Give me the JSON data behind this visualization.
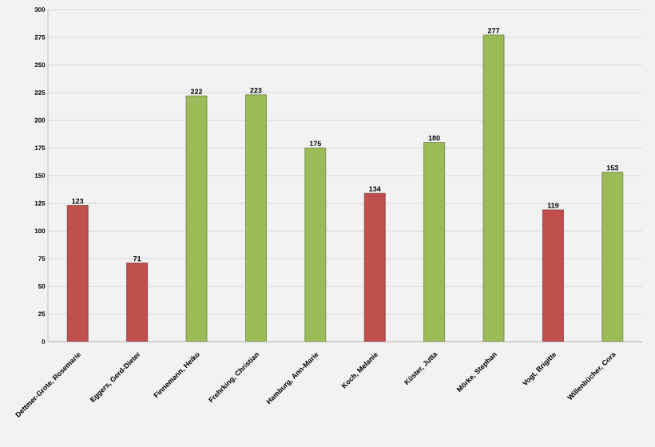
{
  "chart_data": {
    "type": "bar",
    "categories": [
      "Dettmer-Grote, Rosemarie",
      "Eggers, Gerd-Dieter",
      "Finnemann, Heiko",
      "Frehrking, Christian",
      "Hamburg, Ann-Marie",
      "Koch, Melanie",
      "Küster, Jutta",
      "Mörke, Stephan",
      "Vogt, Brigitte",
      "Willenbücher, Cora"
    ],
    "values": [
      123,
      71,
      222,
      223,
      175,
      134,
      180,
      277,
      119,
      153
    ],
    "colors": [
      "#c0504d",
      "#c0504d",
      "#9bbb59",
      "#9bbb59",
      "#9bbb59",
      "#c0504d",
      "#9bbb59",
      "#9bbb59",
      "#c0504d",
      "#9bbb59"
    ],
    "ylim": [
      0,
      300
    ],
    "yticks": [
      0,
      25,
      50,
      75,
      100,
      125,
      150,
      175,
      200,
      225,
      250,
      275,
      300
    ],
    "grid": "y",
    "data_labels": true
  }
}
